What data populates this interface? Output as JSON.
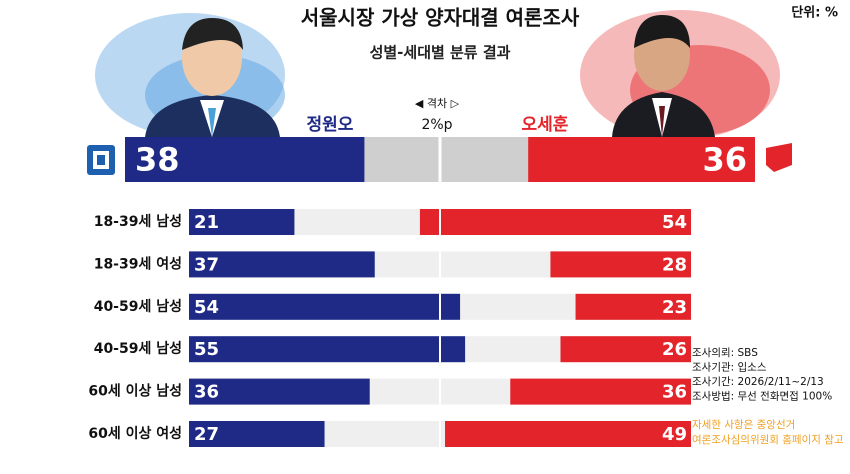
{
  "chart_data": {
    "type": "diverging-bar",
    "title": "서울시장 가상 양자대결 여론조사",
    "subtitle": "성별-세대별 분류 결과",
    "unit": "단위: %",
    "gap_label": "◀ 격차 ▷",
    "gap": "2%p",
    "xlim": [
      0,
      100
    ],
    "categories": [
      "18-39세 남성",
      "18-39세 여성",
      "40-59세 남성",
      "40-59세 남성",
      "60세 이상 남성",
      "60세 이상 여성"
    ],
    "series": [
      {
        "name": "정원오",
        "color": "#1f2a86",
        "overall": 38,
        "values": [
          21,
          37,
          54,
          55,
          36,
          27
        ]
      },
      {
        "name": "오세훈",
        "color": "#e3242b",
        "overall": 36,
        "values": [
          54,
          28,
          23,
          26,
          36,
          49
        ]
      }
    ],
    "notes": [
      "조사의뢰: SBS",
      "조사기관: 입소스",
      "조사기간: 2026/2/11~2/13",
      "조사방법: 무선 전화면접 100%"
    ],
    "disclaimer": [
      "자세한 사항은 중앙선거",
      "여론조사심의위원회 홈페이지 참고"
    ]
  }
}
